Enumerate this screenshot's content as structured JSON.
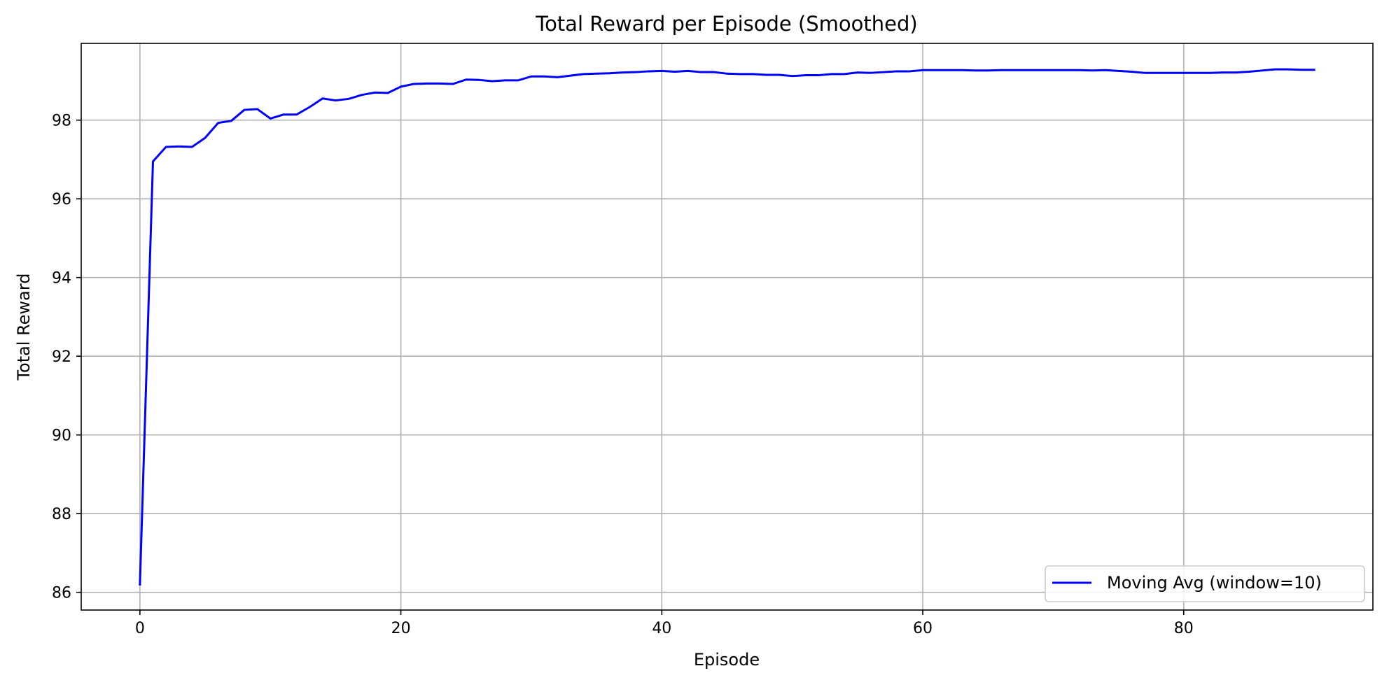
{
  "chart_data": {
    "type": "line",
    "title": "Total Reward per Episode (Smoothed)",
    "xlabel": "Episode",
    "ylabel": "Total Reward",
    "xlim": [
      -4.5,
      94.5
    ],
    "ylim": [
      85.55,
      99.95
    ],
    "xticks": [
      0,
      20,
      40,
      60,
      80
    ],
    "yticks": [
      86,
      88,
      90,
      92,
      94,
      96,
      98
    ],
    "grid": true,
    "legend_position": "bottom-right",
    "series": [
      {
        "name": "Moving Avg (window=10)",
        "color": "#0000ff",
        "x": [
          0,
          1,
          2,
          3,
          4,
          5,
          6,
          7,
          8,
          9,
          10,
          11,
          12,
          13,
          14,
          15,
          16,
          17,
          18,
          19,
          20,
          21,
          22,
          23,
          24,
          25,
          26,
          27,
          28,
          29,
          30,
          31,
          32,
          33,
          34,
          35,
          36,
          37,
          38,
          39,
          40,
          41,
          42,
          43,
          44,
          45,
          46,
          47,
          48,
          49,
          50,
          51,
          52,
          53,
          54,
          55,
          56,
          57,
          58,
          59,
          60,
          61,
          62,
          63,
          64,
          65,
          66,
          67,
          68,
          69,
          70,
          71,
          72,
          73,
          74,
          75,
          76,
          77,
          78,
          79,
          80,
          81,
          82,
          83,
          84,
          85,
          86,
          87,
          88,
          89,
          90
        ],
        "values": [
          86.2,
          96.95,
          97.32,
          97.33,
          97.32,
          97.55,
          97.93,
          97.98,
          98.26,
          98.28,
          98.04,
          98.14,
          98.14,
          98.33,
          98.55,
          98.5,
          98.54,
          98.64,
          98.7,
          98.69,
          98.85,
          98.92,
          98.93,
          98.93,
          98.92,
          99.03,
          99.02,
          98.99,
          99.01,
          99.01,
          99.11,
          99.11,
          99.09,
          99.13,
          99.17,
          99.18,
          99.19,
          99.21,
          99.22,
          99.24,
          99.25,
          99.23,
          99.25,
          99.22,
          99.22,
          99.18,
          99.17,
          99.17,
          99.15,
          99.15,
          99.12,
          99.14,
          99.14,
          99.17,
          99.17,
          99.21,
          99.2,
          99.22,
          99.24,
          99.24,
          99.27,
          99.27,
          99.27,
          99.27,
          99.26,
          99.26,
          99.27,
          99.27,
          99.27,
          99.27,
          99.27,
          99.27,
          99.27,
          99.26,
          99.27,
          99.25,
          99.23,
          99.2,
          99.2,
          99.2,
          99.2,
          99.2,
          99.2,
          99.21,
          99.21,
          99.23,
          99.26,
          99.29,
          99.29,
          99.28,
          99.28
        ]
      }
    ]
  }
}
